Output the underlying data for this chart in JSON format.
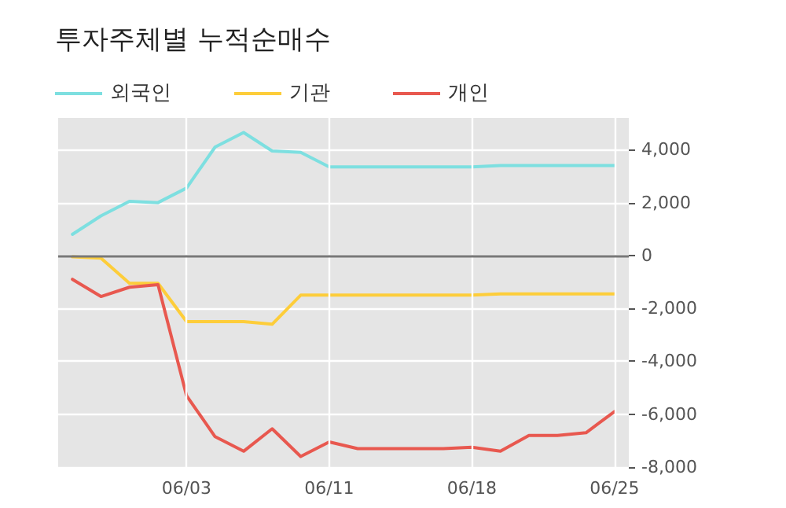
{
  "chart_data": {
    "type": "line",
    "title": "투자주체별 누적순매수",
    "categories": [
      null,
      null,
      null,
      null,
      "06/03",
      null,
      null,
      null,
      null,
      "06/11",
      null,
      null,
      null,
      null,
      "06/18",
      null,
      null,
      null,
      null,
      "06/25"
    ],
    "series": [
      {
        "name": "외국인",
        "color": "#7ddfe0",
        "values": [
          800,
          1500,
          2050,
          2000,
          2550,
          4100,
          4650,
          3950,
          3900,
          3350,
          3350,
          3350,
          3350,
          3350,
          3350,
          3400,
          3400,
          3400,
          3400,
          3400
        ]
      },
      {
        "name": "기관",
        "color": "#fdcd3a",
        "values": [
          -50,
          -100,
          -1050,
          -1050,
          -2500,
          -2500,
          -2500,
          -2600,
          -1500,
          -1500,
          -1500,
          -1500,
          -1500,
          -1500,
          -1500,
          -1450,
          -1450,
          -1450,
          -1450,
          -1450
        ]
      },
      {
        "name": "개인",
        "color": "#e8584f",
        "values": [
          -900,
          -1550,
          -1200,
          -1100,
          -5300,
          -6850,
          -7400,
          -6550,
          -7600,
          -7050,
          -7300,
          -7300,
          -7300,
          -7300,
          -7250,
          -7400,
          -6800,
          -6800,
          -6700,
          -5900
        ]
      }
    ],
    "ylim": [
      -8000,
      5200
    ],
    "yticks": [
      {
        "value": -8000,
        "label": "-8,000"
      },
      {
        "value": -6000,
        "label": "-6,000"
      },
      {
        "value": -4000,
        "label": "-4,000"
      },
      {
        "value": -2000,
        "label": "-2,000"
      },
      0,
      {
        "value": 2000,
        "label": "2,000"
      },
      {
        "value": 4000,
        "label": "4,000"
      }
    ],
    "ref_lines": [
      {
        "axis": "y",
        "value": 0,
        "color": "#777777"
      }
    ],
    "grid": true,
    "legend": "top left",
    "marker": "none",
    "line_style": "solid"
  }
}
